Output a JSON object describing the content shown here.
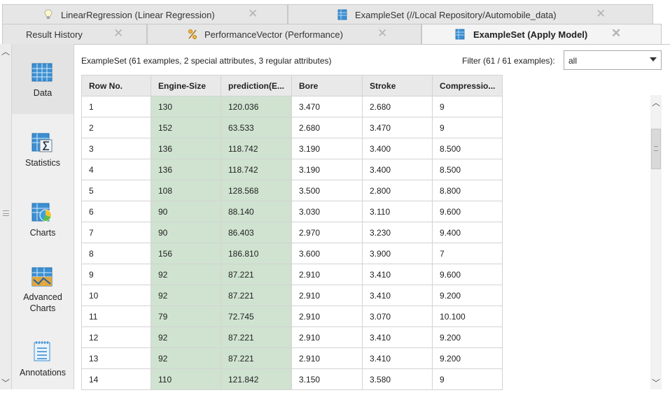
{
  "tabs_top": [
    {
      "label": "LinearRegression (Linear Regression)",
      "icon": "lightbulb-icon"
    },
    {
      "label": "ExampleSet (//Local Repository/Automobile_data)",
      "icon": "table-icon"
    }
  ],
  "tabs_bottom": [
    {
      "label": "Result History",
      "icon": ""
    },
    {
      "label": "PerformanceVector (Performance)",
      "icon": "percent-icon"
    },
    {
      "label": "ExampleSet (Apply Model)",
      "icon": "table-icon",
      "active": true
    }
  ],
  "close_glyph": "✕",
  "nav": {
    "items": [
      {
        "label": "Data",
        "icon": "data-table-icon",
        "selected": true
      },
      {
        "label": "Statistics",
        "icon": "statistics-sigma-icon"
      },
      {
        "label": "Charts",
        "icon": "charts-pie-icon"
      },
      {
        "label": "Advanced Charts",
        "icon": "advanced-charts-icon"
      },
      {
        "label": "Annotations",
        "icon": "annotations-notepad-icon"
      }
    ]
  },
  "meta_text": "ExampleSet (61 examples, 2 special attributes, 3 regular attributes)",
  "filter": {
    "label": "Filter (61 / 61 examples):",
    "value": "all"
  },
  "table": {
    "columns": [
      "Row No.",
      "Engine-Size",
      "prediction(E...",
      "Bore",
      "Stroke",
      "Compressio..."
    ],
    "rows": [
      [
        "1",
        "130",
        "120.036",
        "3.470",
        "2.680",
        "9"
      ],
      [
        "2",
        "152",
        "63.533",
        "2.680",
        "3.470",
        "9"
      ],
      [
        "3",
        "136",
        "118.742",
        "3.190",
        "3.400",
        "8.500"
      ],
      [
        "4",
        "136",
        "118.742",
        "3.190",
        "3.400",
        "8.500"
      ],
      [
        "5",
        "108",
        "128.568",
        "3.500",
        "2.800",
        "8.800"
      ],
      [
        "6",
        "90",
        "88.140",
        "3.030",
        "3.110",
        "9.600"
      ],
      [
        "7",
        "90",
        "86.403",
        "2.970",
        "3.230",
        "9.400"
      ],
      [
        "8",
        "156",
        "186.810",
        "3.600",
        "3.900",
        "7"
      ],
      [
        "9",
        "92",
        "87.221",
        "2.910",
        "3.410",
        "9.600"
      ],
      [
        "10",
        "92",
        "87.221",
        "2.910",
        "3.410",
        "9.200"
      ],
      [
        "11",
        "79",
        "72.745",
        "2.910",
        "3.070",
        "10.100"
      ],
      [
        "12",
        "92",
        "87.221",
        "2.910",
        "3.410",
        "9.200"
      ],
      [
        "13",
        "92",
        "87.221",
        "2.910",
        "3.410",
        "9.200"
      ],
      [
        "14",
        "110",
        "121.842",
        "3.150",
        "3.580",
        "9"
      ]
    ]
  },
  "colors": {
    "highlight": "#cfe3d0",
    "tab_bg": "#e6e6e6",
    "active_tab_bg": "#f4f4f4",
    "nav_bg": "#efefef"
  }
}
